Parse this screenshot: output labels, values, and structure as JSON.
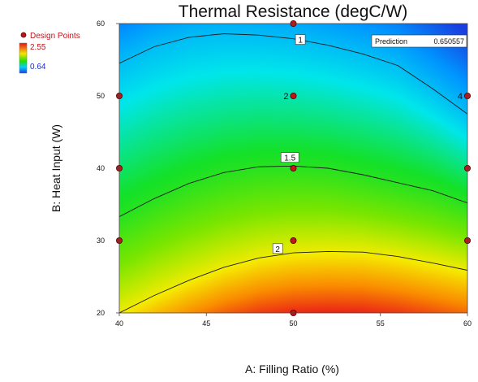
{
  "chart_data": {
    "type": "contour",
    "title": "Thermal Resistance (degC/W)",
    "xlabel": "A: Filling Ratio (%)",
    "ylabel": "B: Heat Input (W)",
    "xlim": [
      40,
      60
    ],
    "ylim": [
      20,
      60
    ],
    "x_ticks": [
      "40",
      "45",
      "50",
      "55",
      "60"
    ],
    "y_ticks": [
      "20",
      "30",
      "40",
      "50",
      "60"
    ],
    "legend": {
      "design_points_label": "Design Points",
      "max_value": "2.55",
      "min_value": "0.64",
      "max_color": "#e8101a",
      "mid_color": "#22e000",
      "min_color": "#1a3ee0"
    },
    "prediction": {
      "label": "Prediction",
      "value": "0.650557"
    },
    "design_points": [
      {
        "x": 50,
        "y": 60
      },
      {
        "x": 40,
        "y": 50
      },
      {
        "x": 50,
        "y": 50,
        "label": "2"
      },
      {
        "x": 60,
        "y": 50,
        "label": "4"
      },
      {
        "x": 40,
        "y": 40
      },
      {
        "x": 50,
        "y": 40
      },
      {
        "x": 60,
        "y": 40
      },
      {
        "x": 40,
        "y": 30
      },
      {
        "x": 50,
        "y": 30
      },
      {
        "x": 60,
        "y": 30
      },
      {
        "x": 50,
        "y": 20
      }
    ],
    "contours": [
      {
        "level": "1",
        "label_at": {
          "x": 50.4,
          "y": 57.8
        },
        "points": [
          [
            40,
            54.5
          ],
          [
            42,
            56.8
          ],
          [
            44,
            58.1
          ],
          [
            46,
            58.6
          ],
          [
            48,
            58.4
          ],
          [
            50,
            57.9
          ],
          [
            52,
            57.0
          ],
          [
            54,
            55.8
          ],
          [
            56,
            54.2
          ],
          [
            58,
            51.0
          ],
          [
            60,
            47.5
          ]
        ]
      },
      {
        "level": "1.5",
        "label_at": {
          "x": 49.8,
          "y": 41.5
        },
        "points": [
          [
            40,
            33.3
          ],
          [
            42,
            35.8
          ],
          [
            44,
            37.9
          ],
          [
            46,
            39.4
          ],
          [
            48,
            40.2
          ],
          [
            50,
            40.3
          ],
          [
            52,
            40.0
          ],
          [
            54,
            39.1
          ],
          [
            56,
            38.0
          ],
          [
            58,
            36.9
          ],
          [
            60,
            35.2
          ]
        ]
      },
      {
        "level": "2",
        "label_at": {
          "x": 49.1,
          "y": 28.9
        },
        "points": [
          [
            40,
            20.0
          ],
          [
            42,
            22.4
          ],
          [
            44,
            24.5
          ],
          [
            46,
            26.3
          ],
          [
            48,
            27.6
          ],
          [
            50,
            28.3
          ],
          [
            52,
            28.5
          ],
          [
            54,
            28.4
          ],
          [
            56,
            27.8
          ],
          [
            58,
            26.9
          ],
          [
            60,
            25.9
          ]
        ]
      }
    ]
  }
}
